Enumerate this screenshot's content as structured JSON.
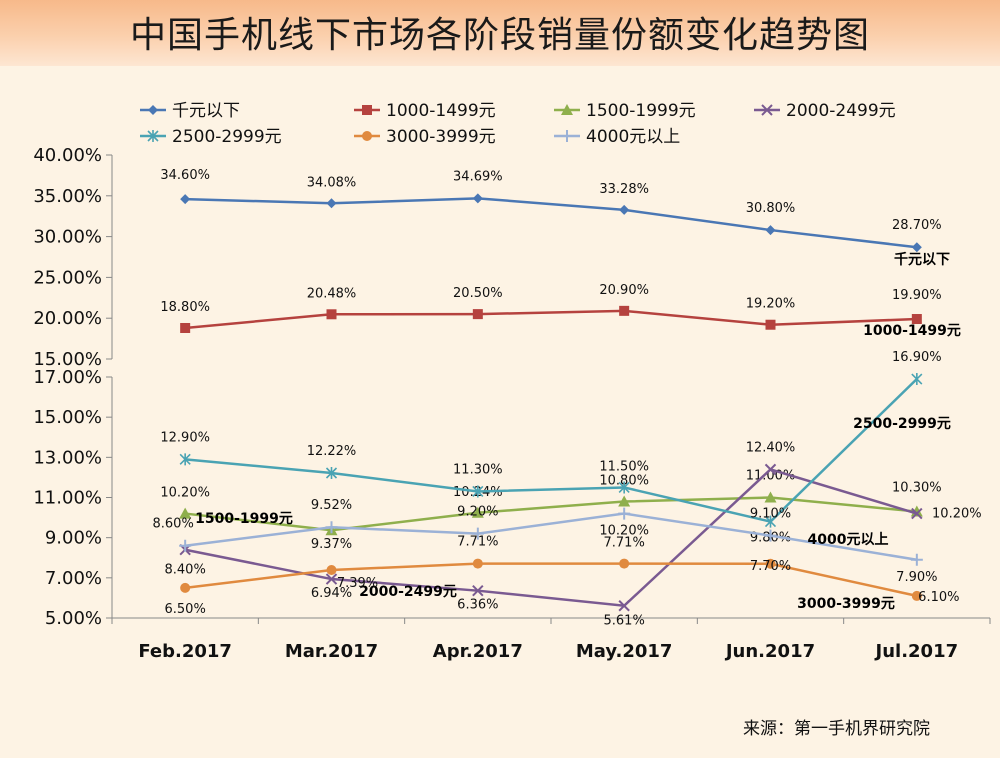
{
  "title": "中国手机线下市场各阶段销量份额变化趋势图",
  "source": "来源：第一手机界研究院",
  "chart_data": [
    {
      "type": "line",
      "panel": "upper",
      "categories": [
        "Feb.2017",
        "Mar.2017",
        "Apr.2017",
        "May.2017",
        "Jun.2017",
        "Jul.2017"
      ],
      "ylim": [
        15,
        40
      ],
      "yticks": [
        "15.00%",
        "20.00%",
        "25.00%",
        "30.00%",
        "35.00%",
        "40.00%"
      ],
      "series": [
        {
          "name": "千元以下",
          "color": "#4a77b4",
          "marker": "diamond",
          "values": [
            34.6,
            34.08,
            34.69,
            33.28,
            30.8,
            28.7
          ],
          "labels": [
            "34.60%",
            "34.08%",
            "34.69%",
            "33.28%",
            "30.80%",
            "28.70%"
          ],
          "annotation": "千元以下"
        },
        {
          "name": "1000-1499元",
          "color": "#b5423e",
          "marker": "square",
          "values": [
            18.8,
            20.48,
            20.5,
            20.9,
            19.2,
            19.9
          ],
          "labels": [
            "18.80%",
            "20.48%",
            "20.50%",
            "20.90%",
            "19.20%",
            "19.90%"
          ],
          "annotation": "1000-1499元"
        }
      ]
    },
    {
      "type": "line",
      "panel": "lower",
      "categories": [
        "Feb.2017",
        "Mar.2017",
        "Apr.2017",
        "May.2017",
        "Jun.2017",
        "Jul.2017"
      ],
      "ylim": [
        5,
        17
      ],
      "yticks": [
        "5.00%",
        "7.00%",
        "9.00%",
        "11.00%",
        "13.00%",
        "15.00%",
        "17.00%"
      ],
      "series": [
        {
          "name": "1500-1999元",
          "color": "#8faf4c",
          "marker": "triangle",
          "values": [
            10.2,
            9.37,
            10.24,
            10.8,
            11.0,
            10.3
          ],
          "labels": [
            "10.20%",
            "9.37%",
            "10.24%",
            "10.80%",
            "11.00%",
            "10.30%"
          ],
          "annotation": "1500-1999元"
        },
        {
          "name": "2000-2499元",
          "color": "#7a5a91",
          "marker": "x",
          "values": [
            8.4,
            6.94,
            6.36,
            5.61,
            12.4,
            10.2
          ],
          "labels": [
            "8.40%",
            "6.94%",
            "6.36%",
            "5.61%",
            "12.40%",
            "10.20%"
          ],
          "annotation": "2000-2499元"
        },
        {
          "name": "2500-2999元",
          "color": "#4aa3b3",
          "marker": "star",
          "values": [
            12.9,
            12.22,
            11.3,
            11.5,
            9.8,
            16.9
          ],
          "labels": [
            "12.90%",
            "12.22%",
            "11.30%",
            "11.50%",
            "9.80%",
            "16.90%"
          ],
          "annotation": "2500-2999元"
        },
        {
          "name": "3000-3999元",
          "color": "#e08a3f",
          "marker": "circle",
          "values": [
            6.5,
            7.39,
            7.71,
            7.71,
            7.7,
            6.1
          ],
          "labels": [
            "6.50%",
            "7.39%",
            "7.71%",
            "7.71%",
            "7.70%",
            "6.10%"
          ],
          "annotation": "3000-3999元"
        },
        {
          "name": "4000元以上",
          "color": "#9bb1d6",
          "marker": "plus",
          "values": [
            8.6,
            9.52,
            9.2,
            10.2,
            9.1,
            7.9
          ],
          "labels": [
            "8.60%",
            "9.52%",
            "9.20%",
            "10.20%",
            "9.10%",
            "7.90%"
          ],
          "annotation": "4000元以上"
        }
      ]
    }
  ]
}
